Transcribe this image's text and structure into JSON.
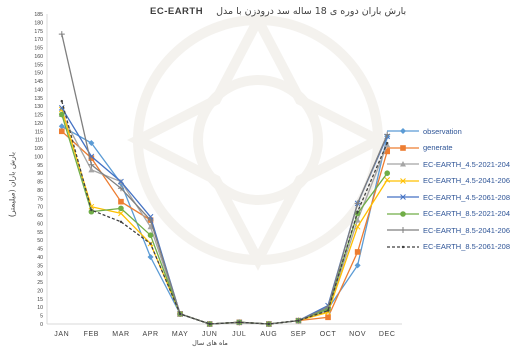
{
  "chart_data": {
    "type": "line",
    "title": "بارش باران دوره ی 18 ساله سد درودزن با مدل",
    "title_model": "EC-EARTH",
    "ylabel": "بارش باران (میلیمتر)",
    "xlabel": "ماه های سال",
    "ylim": [
      0,
      185
    ],
    "ytick_step": 5,
    "grid": false,
    "legend_position": "right",
    "categories": [
      "JAN",
      "FEB",
      "MAR",
      "APR",
      "MAY",
      "JUN",
      "JUL",
      "AUG",
      "SEP",
      "OCT",
      "NOV",
      "DEC"
    ],
    "series": [
      {
        "name": "observation",
        "color": "#5b9bd5",
        "marker": "diamond",
        "dash": "",
        "values": [
          118,
          108,
          84,
          40,
          6,
          0,
          1,
          0,
          2,
          9,
          35,
          112
        ]
      },
      {
        "name": "generate",
        "color": "#ed7d31",
        "marker": "square",
        "dash": "",
        "values": [
          115,
          99,
          73,
          62,
          6,
          0,
          1,
          0,
          2,
          4,
          43,
          103
        ]
      },
      {
        "name": "EC-EARTH_4.5-2021-204",
        "color": "#a5a5a5",
        "marker": "triangle",
        "dash": "",
        "values": [
          125,
          92,
          85,
          58,
          6,
          0,
          1,
          0,
          2,
          8,
          62,
          107
        ]
      },
      {
        "name": "EC-EARTH_4.5-2041-206",
        "color": "#ffc000",
        "marker": "cross",
        "dash": "",
        "values": [
          128,
          70,
          66,
          48,
          6,
          0,
          1,
          0,
          2,
          7,
          58,
          86
        ]
      },
      {
        "name": "EC-EARTH_4.5-2061-208",
        "color": "#4472c4",
        "marker": "cross",
        "dash": "",
        "values": [
          129,
          100,
          85,
          64,
          6,
          0,
          1,
          0,
          2,
          11,
          72,
          112
        ]
      },
      {
        "name": "EC-EARTH_8.5-2021-204",
        "color": "#70ad47",
        "marker": "circle",
        "dash": "",
        "values": [
          125,
          67,
          69,
          53,
          6,
          0,
          1,
          0,
          2,
          9,
          66,
          90
        ]
      },
      {
        "name": "EC-EARTH_8.5-2041-206",
        "color": "#7f7f7f",
        "marker": "plus",
        "dash": "",
        "values": [
          173,
          95,
          81,
          62,
          6,
          0,
          1,
          0,
          2,
          10,
          72,
          113
        ]
      },
      {
        "name": "EC-EARTH_8.5-2061-208",
        "color": "#404040",
        "marker": "dot",
        "dash": "3,2",
        "values": [
          133,
          68,
          61,
          48,
          6,
          0,
          1,
          0,
          2,
          8,
          67,
          108
        ]
      }
    ]
  }
}
